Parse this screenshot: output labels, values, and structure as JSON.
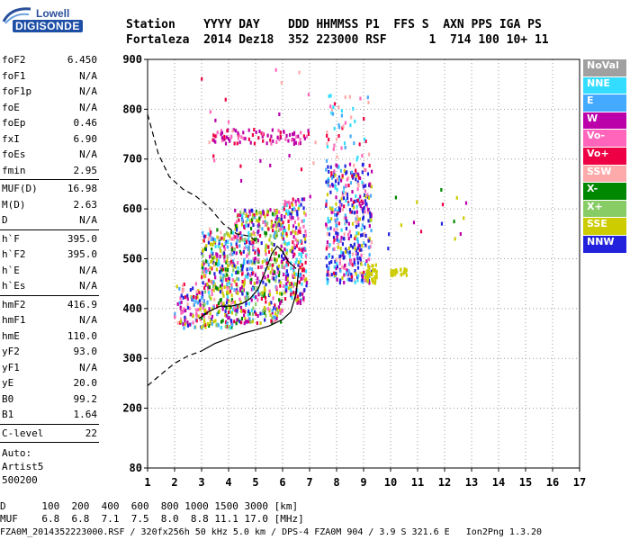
{
  "logo": {
    "line1": "Lowell",
    "line2": "DIGISONDE"
  },
  "header": {
    "labels": "Station    YYYY DAY    DDD HHMMSS P1  FFS S  AXN PPS IGA PS",
    "values": "Fortaleza  2014 Dez18  352 223000 RSF      1  714 100 10+ 11"
  },
  "params": {
    "group1": [
      {
        "k": "foF2",
        "v": "6.450"
      },
      {
        "k": "foF1",
        "v": "N/A"
      },
      {
        "k": "foF1p",
        "v": "N/A"
      },
      {
        "k": "foE",
        "v": "N/A"
      },
      {
        "k": "foEp",
        "v": "0.46"
      },
      {
        "k": "fxI",
        "v": "6.90"
      },
      {
        "k": "foEs",
        "v": "N/A"
      },
      {
        "k": "fmin",
        "v": "2.95"
      }
    ],
    "group2": [
      {
        "k": "MUF(D)",
        "v": "16.98"
      },
      {
        "k": "M(D)",
        "v": "2.63"
      },
      {
        "k": "D",
        "v": "N/A"
      }
    ],
    "group3": [
      {
        "k": "h`F",
        "v": "395.0"
      },
      {
        "k": "h`F2",
        "v": "395.0"
      },
      {
        "k": "h`E",
        "v": "N/A"
      },
      {
        "k": "h`Es",
        "v": "N/A"
      }
    ],
    "group4": [
      {
        "k": "hmF2",
        "v": "416.9"
      },
      {
        "k": "hmF1",
        "v": "N/A"
      },
      {
        "k": "hmE",
        "v": "110.0"
      },
      {
        "k": "yF2",
        "v": "93.0"
      },
      {
        "k": "yF1",
        "v": "N/A"
      },
      {
        "k": "yE",
        "v": "20.0"
      },
      {
        "k": "B0",
        "v": "99.2"
      },
      {
        "k": "B1",
        "v": "1.64"
      }
    ],
    "group5": [
      {
        "k": "C-level",
        "v": "22"
      }
    ],
    "auto": [
      "Auto:",
      "Artist5",
      "500200"
    ]
  },
  "legend": [
    {
      "label": "NoVal",
      "color": "#a0a0a0"
    },
    {
      "label": "NNE",
      "color": "#33ddff"
    },
    {
      "label": "E",
      "color": "#44aaff"
    },
    {
      "label": "W",
      "color": "#bb00aa"
    },
    {
      "label": "Vo-",
      "color": "#ff66bb"
    },
    {
      "label": "Vo+",
      "color": "#ee0044"
    },
    {
      "label": "SSW",
      "color": "#ffaaaa"
    },
    {
      "label": "X-",
      "color": "#008800"
    },
    {
      "label": "X+",
      "color": "#88cc66"
    },
    {
      "label": "SSE",
      "color": "#cccc00"
    },
    {
      "label": "NNW",
      "color": "#2222dd"
    }
  ],
  "chart_data": {
    "type": "scatter",
    "xlim": [
      1,
      17
    ],
    "ylim": [
      80,
      900
    ],
    "x_ticks": [
      1,
      2,
      3,
      4,
      5,
      6,
      7,
      8,
      9,
      10,
      11,
      12,
      13,
      14,
      15,
      16,
      17
    ],
    "y_ticks": [
      80,
      200,
      300,
      400,
      500,
      600,
      700,
      800,
      900
    ],
    "clusters": [
      {
        "x": [
          2,
          3
        ],
        "y": [
          360,
          450
        ],
        "n": 90,
        "colors": [
          "#cccc00",
          "#ee0044",
          "#2222dd",
          "#ff66bb",
          "#44aaff",
          "#ffaaaa",
          "#bb00aa"
        ]
      },
      {
        "x": [
          3,
          4.2
        ],
        "y": [
          360,
          560
        ],
        "n": 330,
        "colors": [
          "#cccc00",
          "#cccc00",
          "#ee0044",
          "#2222dd",
          "#ff66bb",
          "#44aaff",
          "#33ddff",
          "#bb00aa",
          "#ffaaaa",
          "#88cc66",
          "#008800"
        ]
      },
      {
        "x": [
          4.2,
          5
        ],
        "y": [
          370,
          600
        ],
        "n": 240,
        "colors": [
          "#cccc00",
          "#ee0044",
          "#2222dd",
          "#ff66bb",
          "#44aaff",
          "#33ddff",
          "#bb00aa",
          "#88cc66",
          "#008800"
        ]
      },
      {
        "x": [
          5,
          6
        ],
        "y": [
          370,
          600
        ],
        "n": 260,
        "colors": [
          "#cccc00",
          "#cccc00",
          "#ee0044",
          "#2222dd",
          "#ff66bb",
          "#bb00aa",
          "#44aaff",
          "#008800",
          "#88cc66"
        ]
      },
      {
        "x": [
          6,
          6.9
        ],
        "y": [
          410,
          620
        ],
        "n": 230,
        "colors": [
          "#ee0044",
          "#bb00aa",
          "#2222dd",
          "#ff66bb",
          "#cccc00",
          "#33ddff"
        ]
      },
      {
        "x": [
          7.6,
          9.3
        ],
        "y": [
          450,
          690
        ],
        "n": 420,
        "colors": [
          "#2222dd",
          "#2222dd",
          "#2222dd",
          "#ee0044",
          "#33ddff",
          "#44aaff",
          "#ff66bb",
          "#cccc00",
          "#bb00aa",
          "#ffaaaa"
        ]
      },
      {
        "x": [
          7.6,
          9.2
        ],
        "y": [
          690,
          830
        ],
        "n": 50,
        "colors": [
          "#ee0044",
          "#ff66bb",
          "#33ddff",
          "#44aaff",
          "#ffaaaa"
        ]
      },
      {
        "x": [
          3.4,
          7
        ],
        "y": [
          730,
          760
        ],
        "n": 90,
        "colors": [
          "#bb00aa",
          "#ee0044",
          "#bb00aa",
          "#ff66bb"
        ]
      },
      {
        "x": [
          9.1,
          9.5
        ],
        "y": [
          450,
          490
        ],
        "n": 40,
        "colors": [
          "#cccc00"
        ]
      },
      {
        "x": [
          10,
          10.6
        ],
        "y": [
          465,
          480
        ],
        "n": 25,
        "colors": [
          "#cccc00"
        ]
      },
      {
        "x": [
          9.8,
          12.8
        ],
        "y": [
          520,
          640
        ],
        "n": 16,
        "colors": [
          "#cccc00",
          "#008800",
          "#ee0044",
          "#2222dd",
          "#bb00aa"
        ]
      },
      {
        "x": [
          3,
          7.3
        ],
        "y": [
          610,
          880
        ],
        "n": 25,
        "colors": [
          "#ff66bb",
          "#bb00aa",
          "#ee0044",
          "#ffaaaa"
        ]
      }
    ],
    "solid_trace": [
      [
        2.9,
        380
      ],
      [
        3.3,
        395
      ],
      [
        3.7,
        405
      ],
      [
        4.1,
        405
      ],
      [
        4.5,
        410
      ],
      [
        4.8,
        420
      ],
      [
        5.1,
        440
      ],
      [
        5.4,
        480
      ],
      [
        5.6,
        510
      ],
      [
        5.8,
        525
      ],
      [
        6,
        515
      ],
      [
        6.2,
        495
      ],
      [
        6.4,
        485
      ],
      [
        6.5,
        480
      ]
    ],
    "lower_trace": [
      [
        3,
        315
      ],
      [
        3.5,
        330
      ],
      [
        4,
        340
      ],
      [
        4.5,
        350
      ],
      [
        5,
        357
      ],
      [
        5.5,
        365
      ],
      [
        6,
        378
      ],
      [
        6.3,
        393
      ],
      [
        6.5,
        430
      ],
      [
        6.6,
        480
      ]
    ],
    "dashed_lower": [
      [
        1,
        245
      ],
      [
        1.5,
        268
      ],
      [
        2,
        290
      ],
      [
        2.5,
        305
      ],
      [
        3,
        315
      ]
    ],
    "dashed_upper": [
      [
        1,
        790
      ],
      [
        1.4,
        710
      ],
      [
        1.8,
        665
      ],
      [
        2.3,
        640
      ],
      [
        2.8,
        625
      ],
      [
        3.3,
        602
      ],
      [
        3.8,
        570
      ],
      [
        4.3,
        550
      ],
      [
        4.8,
        545
      ],
      [
        5.1,
        530
      ]
    ]
  },
  "footer": {
    "row1": "D      100  200  400  600  800 1000 1500 3000 [km]",
    "row2": "MUF    6.8  6.8  7.1  7.5  8.0  8.8 11.1 17.0 [MHz]",
    "line": "FZA0M_2014352223000.RSF / 320fx256h 50 kHz 5.0 km / DPS-4 FZA0M 904 / 3.9 S 321.6 E   Ion2Png 1.3.20"
  }
}
